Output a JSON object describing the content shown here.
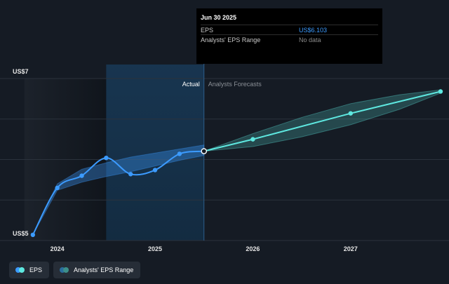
{
  "chart_data": {
    "type": "line",
    "ylim": [
      5,
      7
    ],
    "y_tick_labels": [
      {
        "label": "US$7",
        "value": 7
      },
      {
        "label": "US$5",
        "value": 5
      }
    ],
    "x_axis": {
      "range": [
        2023.5,
        2027.92
      ],
      "tick_labels": [
        {
          "label": "2024",
          "value": 2024.0
        },
        {
          "label": "2025",
          "value": 2025.0
        },
        {
          "label": "2026",
          "value": 2026.0
        },
        {
          "label": "2027",
          "value": 2027.0
        }
      ]
    },
    "region_labels": {
      "actual": "Actual",
      "forecast": "Analysts Forecasts"
    },
    "divider_x": 2025.5,
    "highlight_start_x": 2024.5,
    "grid": true,
    "series": [
      {
        "name": "EPS",
        "color": "#3c9bff",
        "points": [
          {
            "x": 2023.75,
            "y": 5.07
          },
          {
            "x": 2024.0,
            "y": 5.65
          },
          {
            "x": 2024.25,
            "y": 5.8
          },
          {
            "x": 2024.5,
            "y": 6.02
          },
          {
            "x": 2024.75,
            "y": 5.82
          },
          {
            "x": 2025.0,
            "y": 5.87
          },
          {
            "x": 2025.25,
            "y": 6.07
          },
          {
            "x": 2025.5,
            "y": 6.103
          }
        ]
      },
      {
        "name": "EPS forecast",
        "color": "#5ee8e0",
        "points": [
          {
            "x": 2025.5,
            "y": 6.103
          },
          {
            "x": 2026.0,
            "y": 6.25
          },
          {
            "x": 2027.0,
            "y": 6.57
          },
          {
            "x": 2027.92,
            "y": 6.84
          }
        ]
      }
    ],
    "ranges": [
      {
        "name": "Analysts' EPS Range",
        "color": "#3c9bff",
        "x": [
          2023.75,
          2024.0,
          2024.25,
          2024.5,
          2024.75,
          2025.0,
          2025.25,
          2025.5
        ],
        "low": [
          5.07,
          5.62,
          5.72,
          5.79,
          5.85,
          5.92,
          5.99,
          6.05
        ],
        "high": [
          5.07,
          5.7,
          5.88,
          5.96,
          6.03,
          6.08,
          6.13,
          6.18
        ]
      },
      {
        "name": "Analysts' EPS Range forecast",
        "color": "#5ee8e0",
        "x": [
          2025.5,
          2026.0,
          2026.5,
          2027.0,
          2027.5,
          2027.92
        ],
        "low": [
          6.103,
          6.16,
          6.28,
          6.43,
          6.62,
          6.82
        ],
        "high": [
          6.103,
          6.32,
          6.52,
          6.69,
          6.8,
          6.86
        ]
      }
    ]
  },
  "tooltip": {
    "title": "Jun 30 2025",
    "rows": [
      {
        "label": "EPS",
        "value": "US$6.103"
      },
      {
        "label": "Analysts' EPS Range",
        "value": "No data"
      }
    ]
  },
  "legend": [
    {
      "label": "EPS",
      "colors": [
        "#3c9bff",
        "#5ee8e0"
      ]
    },
    {
      "label": "Analysts' EPS Range",
      "colors": [
        "#2a6e9e",
        "#3d8f8a"
      ]
    }
  ]
}
